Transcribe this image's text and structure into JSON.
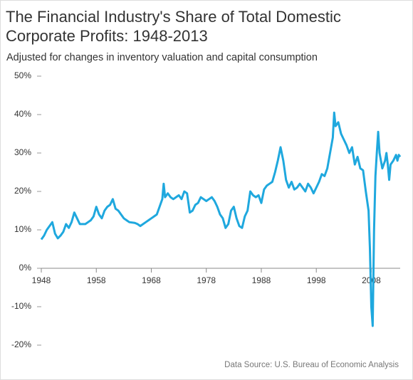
{
  "chart_data": {
    "type": "line",
    "title": [
      "The Financial Industry's Share of Total Domestic",
      "Corporate Profits: 1948-2013"
    ],
    "subtitle": "Adjusted for changes in inventory valuation and capital consumption",
    "source": "Data Source: U.S. Bureau of Economic Analysis",
    "color": "#1fa8de",
    "xlim": [
      1948,
      2013.25
    ],
    "xticks": [
      1948,
      1958,
      1968,
      1978,
      1988,
      1998,
      2008
    ],
    "ylim": [
      -20,
      50
    ],
    "yticks": [
      {
        "value": -20,
        "label": "-20%"
      },
      {
        "value": -10,
        "label": "-10%"
      },
      {
        "value": 0,
        "label": "0%"
      },
      {
        "value": 10,
        "label": "10%"
      },
      {
        "value": 20,
        "label": "20%"
      },
      {
        "value": 30,
        "label": "30%"
      },
      {
        "value": 40,
        "label": "40%"
      },
      {
        "value": 50,
        "label": "50%"
      }
    ],
    "grid": false,
    "x": [
      1948,
      1948.5,
      1949,
      1949.5,
      1950,
      1950.5,
      1951,
      1951.5,
      1952,
      1952.5,
      1953,
      1953.5,
      1954,
      1954.5,
      1955,
      1956,
      1956.5,
      1957,
      1957.5,
      1958,
      1958.5,
      1959,
      1959.5,
      1960,
      1960.5,
      1961,
      1961.5,
      1962,
      1962.5,
      1963,
      1963.5,
      1964,
      1965,
      1965.5,
      1966,
      1966.5,
      1967,
      1967.5,
      1968,
      1968.5,
      1969,
      1969.5,
      1970,
      1970.25,
      1970.5,
      1971,
      1971.5,
      1972,
      1972.5,
      1973,
      1973.5,
      1974,
      1974.5,
      1975,
      1975.5,
      1976,
      1976.5,
      1977,
      1977.5,
      1978,
      1978.5,
      1979,
      1979.5,
      1980,
      1980.5,
      1981,
      1981.5,
      1982,
      1982.5,
      1983,
      1983.5,
      1984,
      1984.5,
      1985,
      1985.5,
      1986,
      1986.5,
      1987,
      1987.5,
      1988,
      1988.5,
      1989,
      1989.5,
      1990,
      1990.5,
      1991,
      1991.5,
      1992,
      1992.5,
      1993,
      1993.5,
      1994,
      1994.5,
      1995,
      1995.5,
      1996,
      1996.5,
      1997,
      1997.5,
      1998,
      1998.5,
      1999,
      1999.5,
      2000,
      2000.5,
      2001,
      2001.25,
      2001.5,
      2002,
      2002.5,
      2003,
      2003.5,
      2004,
      2004.5,
      2005,
      2005.5,
      2006,
      2006.5,
      2007,
      2007.5,
      2007.75,
      2008,
      2008.25,
      2008.5,
      2008.75,
      2009,
      2009.25,
      2009.5,
      2010,
      2010.5,
      2010.75,
      2011,
      2011.25,
      2011.5,
      2012,
      2012.5,
      2012.75,
      2013,
      2013.25
    ],
    "values": [
      7.5,
      8.5,
      10,
      11,
      12,
      9,
      7.8,
      8.5,
      9.5,
      11.5,
      10.5,
      12,
      14.5,
      13,
      11.5,
      11.5,
      12,
      12.5,
      13.5,
      16,
      14,
      13,
      15,
      16,
      16.5,
      18,
      15.5,
      15,
      14,
      13,
      12.5,
      12,
      11.8,
      11.5,
      11,
      11.5,
      12,
      12.5,
      13,
      13.5,
      14,
      16,
      18,
      22,
      18.5,
      19.5,
      18.5,
      18,
      18.5,
      19,
      18,
      20,
      19.5,
      14.5,
      15,
      16.5,
      17,
      18.5,
      18,
      17.5,
      18,
      18.5,
      17.5,
      16,
      14,
      13,
      10.5,
      11.5,
      15,
      16,
      13,
      11,
      10.5,
      13.5,
      15,
      20,
      19,
      18.5,
      19,
      17,
      20.5,
      21.5,
      22,
      22.5,
      25,
      28,
      31.5,
      28,
      23,
      21,
      22.5,
      20.5,
      21,
      22,
      21,
      20,
      22,
      21,
      19.5,
      21,
      22.5,
      24.5,
      24,
      26,
      30,
      34,
      40.5,
      37,
      38,
      35,
      33.5,
      32,
      30,
      31.5,
      27,
      29,
      26,
      25.5,
      20,
      15,
      5,
      -10,
      -15,
      10,
      24,
      30,
      35.5,
      30,
      26,
      28,
      30,
      27,
      23,
      27,
      28,
      29.5,
      28,
      29.5,
      29
    ]
  }
}
